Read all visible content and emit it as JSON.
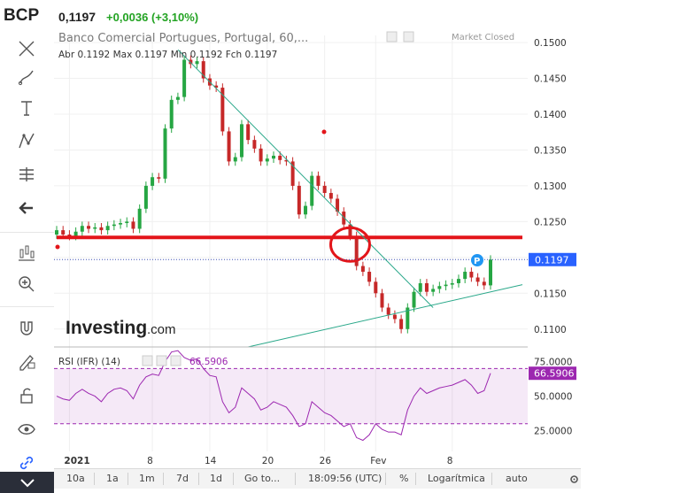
{
  "header": {
    "symbol": "BCP",
    "price": "0,1197",
    "change": "+0,0036 (+3,10%)",
    "change_color": "#23a323"
  },
  "legend": {
    "title": "Banco Comercial Portugues, Portugal, 60,...",
    "market_status": "Market Closed",
    "ohlc": "Abr 0.1192  Max 0.1197  Min 0.1192  Fch 0.1197"
  },
  "watermark": {
    "brand": "Investing",
    "suffix": ".com"
  },
  "rsi": {
    "label": "RSI (IFR) (14)",
    "value_label": "66.5906"
  },
  "price_badge": "0.1197",
  "rsi_badge": "66.5906",
  "toolbar_icons": [
    "crosshair-icon",
    "brush-icon",
    "text-icon",
    "pattern-icon",
    "measure-icon",
    "back-arrow-icon",
    "chart-style-icon",
    "zoom-in-icon",
    "magnet-icon",
    "lock-edit-icon",
    "unlock-icon",
    "eye-icon",
    "link-icon"
  ],
  "bottom_bar": {
    "ranges": [
      "10a",
      "1a",
      "1m",
      "7d",
      "1d"
    ],
    "goto": "Go to...",
    "time": "18:09:56 (UTC)",
    "percent": "%",
    "log": "Logarítmica",
    "auto": "auto"
  },
  "colors": {
    "up": "#26a643",
    "down": "#c62828",
    "trendline": "#2aa88a",
    "annotation": "#e3151a",
    "rsi": "#9c27b0",
    "price_axis_badge": "#2962ff"
  },
  "chart_data": [
    {
      "type": "candlestick",
      "x_ticks": [
        "2021",
        "8",
        "14",
        "20",
        "26",
        "Fev",
        "8"
      ],
      "y_ticks": [
        "0.1500",
        "0.1450",
        "0.1400",
        "0.1350",
        "0.1300",
        "0.1250",
        "0.1200",
        "0.1150",
        "0.1100"
      ],
      "ylim": [
        0.1075,
        0.151
      ],
      "last_price": 0.1197,
      "grid": true,
      "close_series": [
        0.1238,
        0.1232,
        0.123,
        0.1236,
        0.1244,
        0.124,
        0.1242,
        0.1238,
        0.1244,
        0.1246,
        0.1248,
        0.125,
        0.124,
        0.1268,
        0.13,
        0.1312,
        0.131,
        0.138,
        0.142,
        0.1424,
        0.1476,
        0.147,
        0.1474,
        0.145,
        0.144,
        0.1437,
        0.1376,
        0.1334,
        0.134,
        0.1386,
        0.1364,
        0.1352,
        0.1334,
        0.1338,
        0.1342,
        0.1336,
        0.1334,
        0.13,
        0.126,
        0.1272,
        0.1314,
        0.13,
        0.129,
        0.1282,
        0.1264,
        0.1246,
        0.123,
        0.1188,
        0.118,
        0.1166,
        0.115,
        0.113,
        0.112,
        0.1114,
        0.11,
        0.113,
        0.1152,
        0.1164,
        0.1152,
        0.1156,
        0.116,
        0.1162,
        0.1164,
        0.117,
        0.118,
        0.1172,
        0.1166,
        0.1161,
        0.1197
      ],
      "annotations": {
        "horizontal_level": 0.1228,
        "downtrend": [
          [
            0.149,
            0.113
          ]
        ],
        "uptrend": [
          [
            0.1075,
            0.1162
          ]
        ],
        "circle_price": 0.1218
      }
    },
    {
      "type": "line",
      "name": "RSI (IFR) (14)",
      "y_ticks": [
        "75.0000",
        "50.0000",
        "25.0000"
      ],
      "ylim": [
        10,
        85
      ],
      "bands": [
        70,
        30
      ],
      "values": [
        50,
        48,
        47,
        52,
        55,
        52,
        50,
        46,
        52,
        55,
        56,
        54,
        48,
        58,
        64,
        66,
        65,
        75,
        82,
        83,
        78,
        76,
        77,
        70,
        65,
        64,
        46,
        38,
        42,
        56,
        52,
        48,
        40,
        42,
        46,
        44,
        42,
        36,
        28,
        30,
        46,
        42,
        38,
        36,
        32,
        28,
        30,
        20,
        18,
        22,
        30,
        26,
        24,
        24,
        22,
        40,
        50,
        56,
        52,
        54,
        56,
        57,
        58,
        60,
        62,
        58,
        52,
        54,
        66.59
      ]
    }
  ]
}
